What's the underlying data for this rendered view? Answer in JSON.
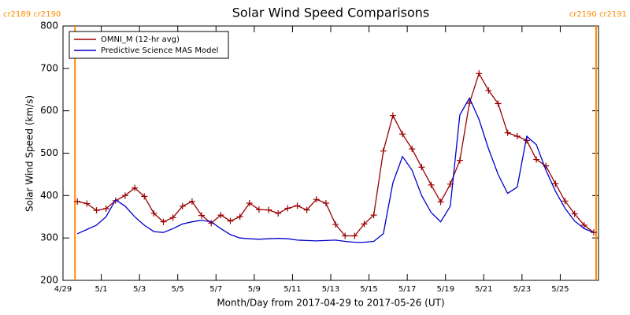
{
  "chart_data": {
    "type": "line",
    "title": "Solar Wind Speed Comparisons",
    "xlabel": "Month/Day from 2017-04-29 to 2017-05-26 (UT)",
    "ylabel": "Solar Wind Speed (km/s)",
    "x": [
      "2017-04-29T18:00",
      "2017-04-30T06:00",
      "2017-04-30T18:00",
      "2017-05-01T06:00",
      "2017-05-01T18:00",
      "2017-05-02T06:00",
      "2017-05-02T18:00",
      "2017-05-03T06:00",
      "2017-05-03T18:00",
      "2017-05-04T06:00",
      "2017-05-04T18:00",
      "2017-05-05T06:00",
      "2017-05-05T18:00",
      "2017-05-06T06:00",
      "2017-05-06T18:00",
      "2017-05-07T06:00",
      "2017-05-07T18:00",
      "2017-05-08T06:00",
      "2017-05-08T18:00",
      "2017-05-09T06:00",
      "2017-05-09T18:00",
      "2017-05-10T06:00",
      "2017-05-10T18:00",
      "2017-05-11T06:00",
      "2017-05-11T18:00",
      "2017-05-12T06:00",
      "2017-05-12T18:00",
      "2017-05-13T06:00",
      "2017-05-13T18:00",
      "2017-05-14T06:00",
      "2017-05-14T18:00",
      "2017-05-15T06:00",
      "2017-05-15T18:00",
      "2017-05-16T06:00",
      "2017-05-16T18:00",
      "2017-05-17T06:00",
      "2017-05-17T18:00",
      "2017-05-18T06:00",
      "2017-05-18T18:00",
      "2017-05-19T06:00",
      "2017-05-19T18:00",
      "2017-05-20T06:00",
      "2017-05-20T18:00",
      "2017-05-21T06:00",
      "2017-05-21T18:00",
      "2017-05-22T06:00",
      "2017-05-22T18:00",
      "2017-05-23T06:00",
      "2017-05-23T18:00",
      "2017-05-24T06:00",
      "2017-05-24T18:00",
      "2017-05-25T06:00",
      "2017-05-25T18:00",
      "2017-05-26T06:00",
      "2017-05-26T18:00"
    ],
    "series": [
      {
        "name": "OMNI_M (12-hr avg)",
        "color": "#990000",
        "marker": "+",
        "values": [
          386,
          381,
          365,
          369,
          388,
          400,
          418,
          398,
          358,
          338,
          348,
          375,
          386,
          353,
          335,
          354,
          340,
          350,
          382,
          367,
          366,
          358,
          370,
          376,
          366,
          391,
          382,
          332,
          305,
          305,
          333,
          354,
          505,
          589,
          545,
          510,
          467,
          425,
          385,
          427,
          483,
          618,
          688,
          648,
          617,
          548,
          540,
          530,
          485,
          470,
          428,
          387,
          357,
          330,
          313
        ]
      },
      {
        "name": "Predictive Science MAS Model",
        "color": "#0000cc",
        "values": [
          310,
          320,
          330,
          350,
          390,
          375,
          350,
          330,
          315,
          313,
          322,
          333,
          338,
          342,
          338,
          322,
          308,
          300,
          298,
          297,
          298,
          299,
          298,
          295,
          294,
          293,
          294,
          295,
          292,
          290,
          290,
          292,
          310,
          430,
          492,
          460,
          400,
          360,
          338,
          375,
          590,
          630,
          580,
          510,
          450,
          405,
          420,
          540,
          520,
          460,
          410,
          370,
          340,
          322,
          313
        ]
      }
    ],
    "xlim": [
      "2017-04-29",
      "2017-05-27"
    ],
    "xticks": [
      {
        "value": "2017-04-29",
        "label": "4/29"
      },
      {
        "value": "2017-05-01",
        "label": "5/1"
      },
      {
        "value": "2017-05-03",
        "label": "5/3"
      },
      {
        "value": "2017-05-05",
        "label": "5/5"
      },
      {
        "value": "2017-05-07",
        "label": "5/7"
      },
      {
        "value": "2017-05-09",
        "label": "5/9"
      },
      {
        "value": "2017-05-11",
        "label": "5/11"
      },
      {
        "value": "2017-05-13",
        "label": "5/13"
      },
      {
        "value": "2017-05-15",
        "label": "5/15"
      },
      {
        "value": "2017-05-17",
        "label": "5/17"
      },
      {
        "value": "2017-05-19",
        "label": "5/19"
      },
      {
        "value": "2017-05-21",
        "label": "5/21"
      },
      {
        "value": "2017-05-23",
        "label": "5/23"
      },
      {
        "value": "2017-05-25",
        "label": "5/25"
      }
    ],
    "ylim": [
      200,
      800
    ],
    "yticks": [
      200,
      300,
      400,
      500,
      600,
      700,
      800
    ],
    "legend": "upper left",
    "markers": [
      {
        "x": "2017-04-29T15:00",
        "label": "cr2189 cr2190",
        "color": "#ff8c00"
      },
      {
        "x": "2017-05-26T21:00",
        "label": "cr2190 cr2191",
        "color": "#ff8c00"
      }
    ]
  }
}
